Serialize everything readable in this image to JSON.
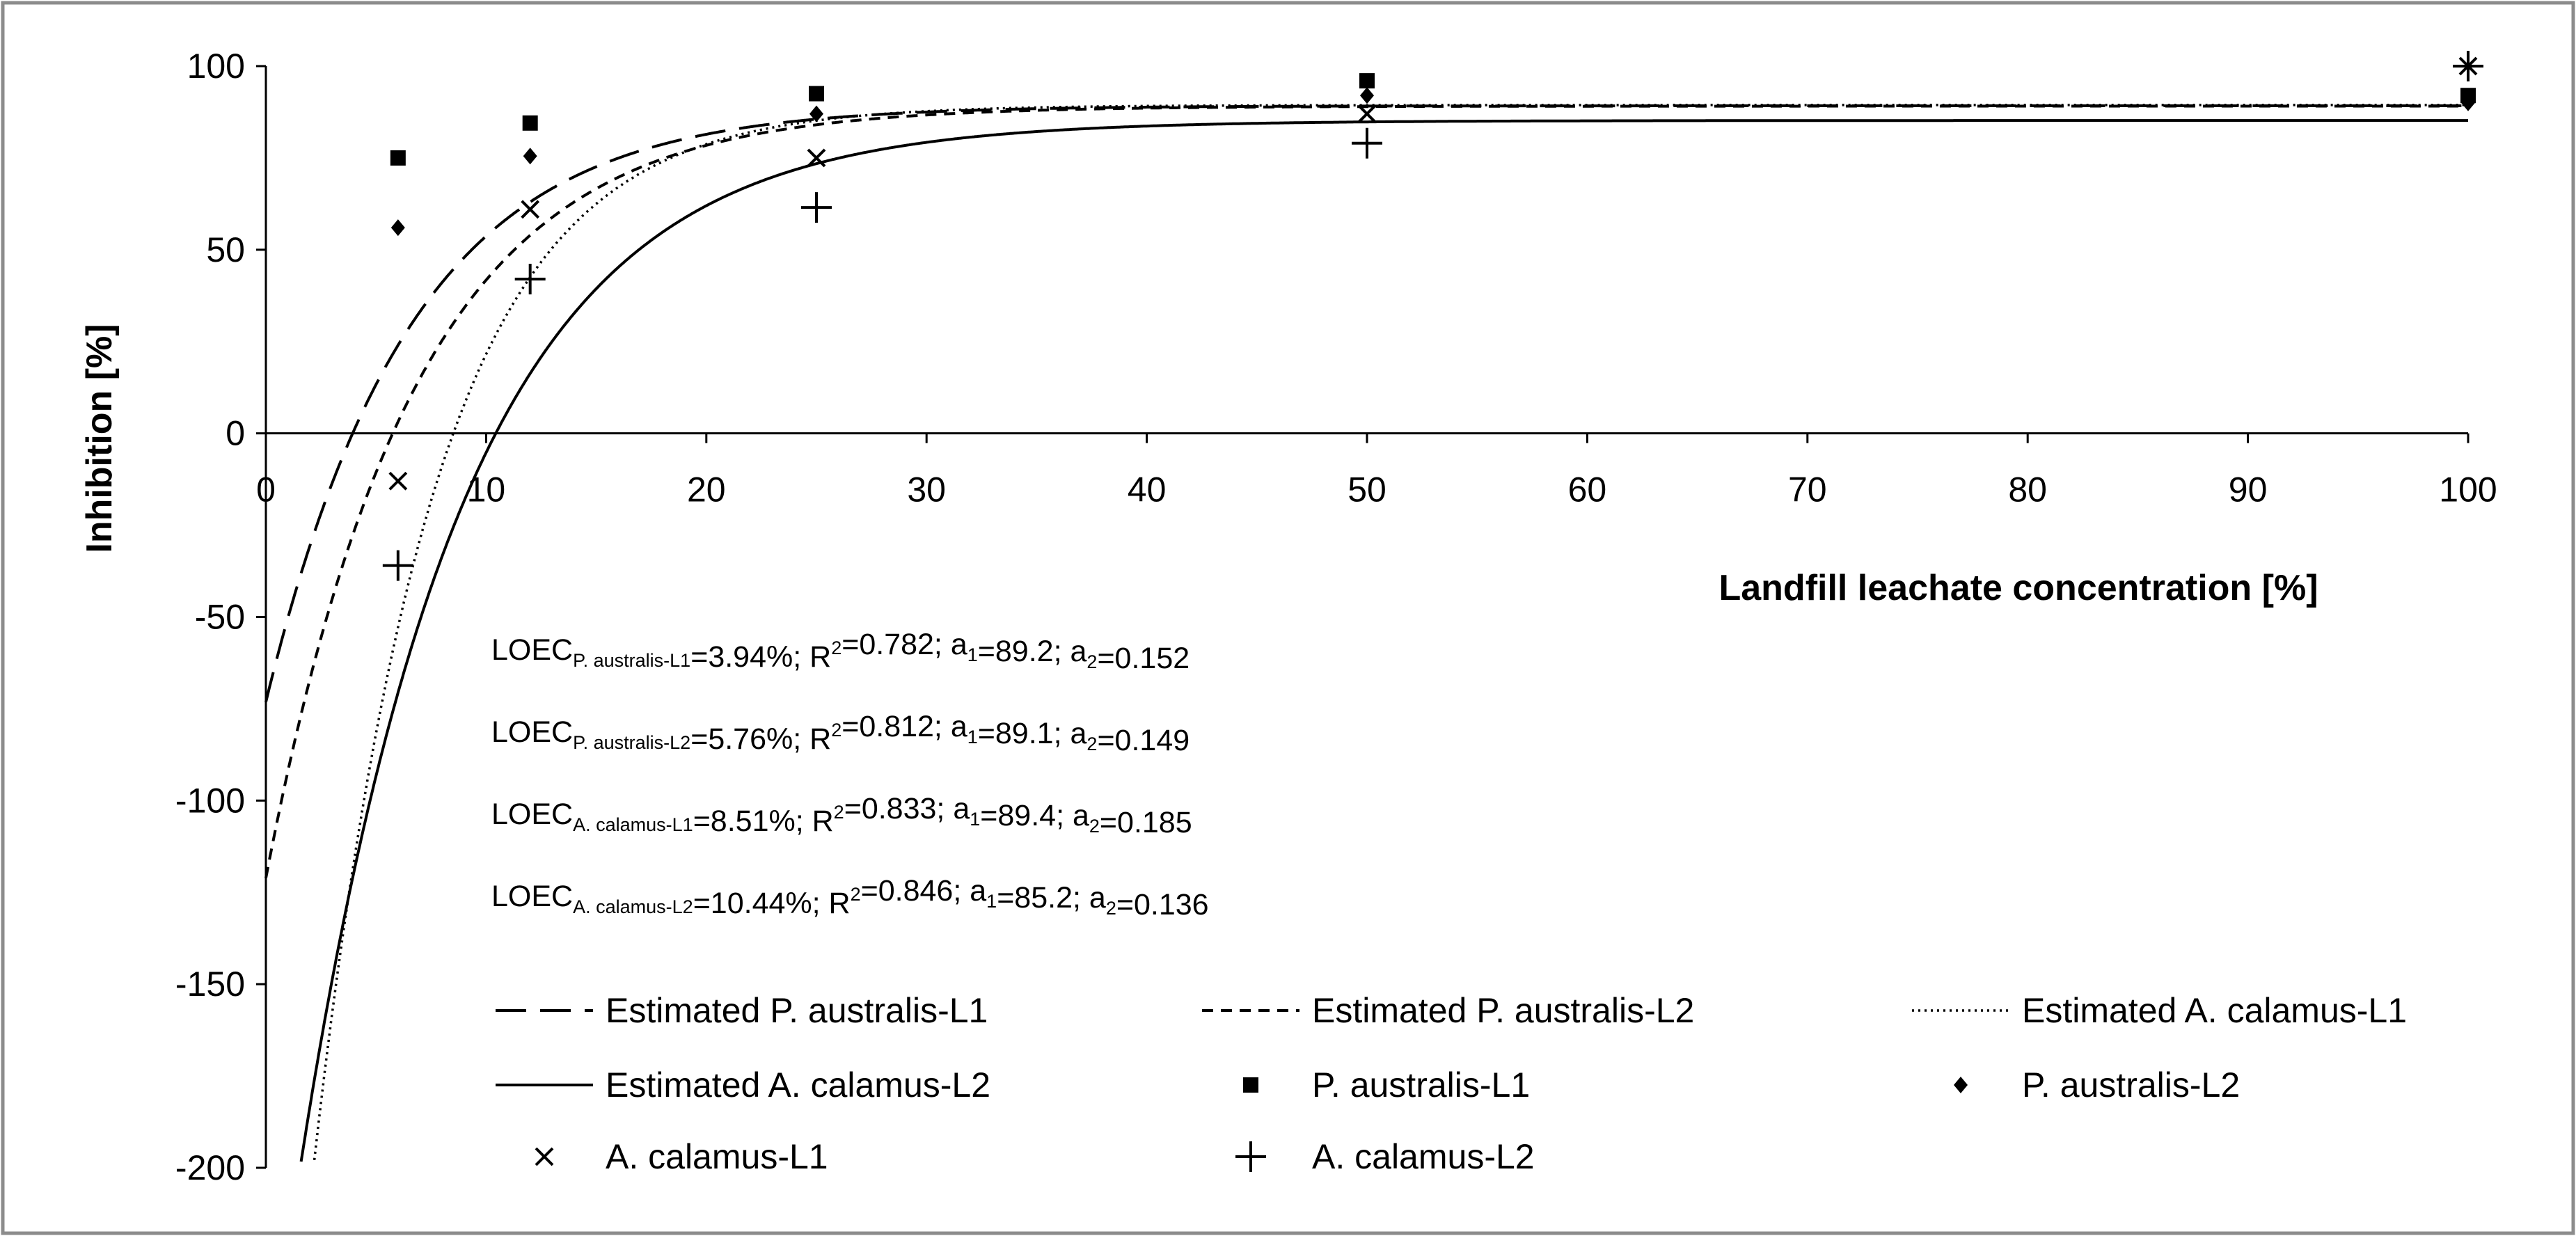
{
  "chart_data": {
    "type": "scatter",
    "title": "",
    "xlabel": "Landfill leachate concentration [%]",
    "ylabel": "Inhibition [%]",
    "xlim": [
      0,
      100
    ],
    "ylim": [
      -200,
      100
    ],
    "x_ticks": [
      "0",
      "10",
      "20",
      "30",
      "40",
      "50",
      "60",
      "70",
      "80",
      "90",
      "100"
    ],
    "y_ticks": [
      "100",
      "50",
      "0",
      "-50",
      "-100",
      "-150",
      "-200"
    ],
    "grid": false,
    "legend_position": "bottom",
    "series": [
      {
        "name": "P. australis-L1",
        "marker": "square",
        "x": [
          6,
          12,
          25,
          50,
          100
        ],
        "y": [
          75,
          84.5,
          92.5,
          96,
          92
        ]
      },
      {
        "name": "P. australis-L2",
        "marker": "diamond",
        "x": [
          6,
          12,
          25,
          50,
          100
        ],
        "y": [
          56,
          75.5,
          87,
          92,
          90
        ]
      },
      {
        "name": "A. calamus-L1",
        "marker": "x",
        "x": [
          6,
          12,
          25,
          50,
          100
        ],
        "y": [
          -13,
          61,
          75,
          87,
          100
        ]
      },
      {
        "name": "A. calamus-L2",
        "marker": "plus",
        "x": [
          6,
          12,
          25,
          50,
          100
        ],
        "y": [
          -36,
          42,
          61.5,
          79,
          100
        ]
      }
    ],
    "fitted_curves": [
      {
        "name": "Estimated P. australis-L1",
        "style": "long-dash",
        "loec": 3.94,
        "a1": 89.2,
        "a2": 0.152
      },
      {
        "name": "Estimated P. australis-L2",
        "style": "short-dash",
        "loec": 5.76,
        "a1": 89.1,
        "a2": 0.149
      },
      {
        "name": "Estimated A. calamus-L1",
        "style": "dotted",
        "loec": 8.51,
        "a1": 89.4,
        "a2": 0.185
      },
      {
        "name": "Estimated A. calamus-L2",
        "style": "solid",
        "loec": 10.44,
        "a1": 85.2,
        "a2": 0.136
      }
    ],
    "annotations": [
      {
        "prefix": "LOEC",
        "sub": "P. australis-L1",
        "loec": "=3.94%; R",
        "sup": "2",
        "r2": "=0.782; a",
        "a1sub": "1",
        "a1": "=89.2; a",
        "a2sub": "2",
        "a2": "=0.152"
      },
      {
        "prefix": "LOEC",
        "sub": "P. australis-L2",
        "loec": "=5.76%; R",
        "sup": "2",
        "r2": "=0.812; a",
        "a1sub": "1",
        "a1": "=89.1; a",
        "a2sub": "2",
        "a2": "=0.149"
      },
      {
        "prefix": "LOEC",
        "sub": "A. calamus-L1",
        "loec": "=8.51%; R",
        "sup": "2",
        "r2": "=0.833; a",
        "a1sub": "1",
        "a1": "=89.4; a",
        "a2sub": "2",
        "a2": "=0.185"
      },
      {
        "prefix": "LOEC",
        "sub": "A. calamus-L2",
        "loec": "=10.44%; R",
        "sup": "2",
        "r2": "=0.846; a",
        "a1sub": "1",
        "a1": "=85.2; a",
        "a2sub": "2",
        "a2": "=0.136"
      }
    ],
    "legend": [
      "Estimated P. australis-L1",
      "Estimated P. australis-L2",
      "Estimated A. calamus-L1",
      "Estimated A. calamus-L2",
      "P. australis-L1",
      "P. australis-L2",
      "A. calamus-L1",
      "A. calamus-L2"
    ],
    "colors": {
      "ink": "#000000",
      "frame": "#8c8c8c",
      "axis": "#000000"
    }
  }
}
